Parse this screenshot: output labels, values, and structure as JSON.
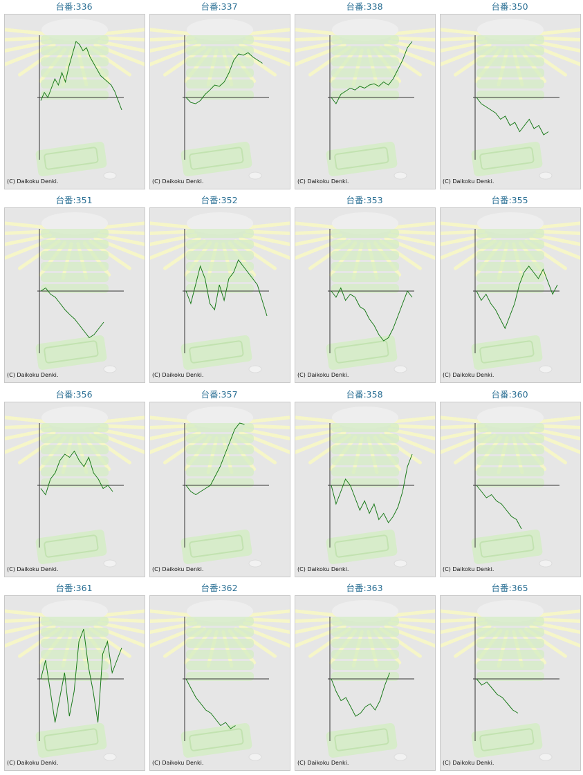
{
  "colors": {
    "title": "#2a6f94",
    "line": "#1a7a1a",
    "axis": "#333333",
    "panel_bg": "#e6e6e6",
    "border": "#c8c8c8",
    "watermark": "#d4ecc4",
    "rays": "#f6f6c8"
  },
  "copyright": "(C) Daikoku Denki.",
  "chart_data": [
    {
      "type": "line",
      "title": "台番:336",
      "values": [
        -5,
        8,
        0,
        15,
        30,
        20,
        40,
        25,
        50,
        70,
        90,
        85,
        75,
        80,
        65,
        55,
        45,
        35,
        30,
        25,
        20,
        10,
        -5,
        -20
      ]
    },
    {
      "type": "line",
      "title": "台番:337",
      "values": [
        0,
        -8,
        -10,
        -5,
        5,
        12,
        20,
        18,
        25,
        40,
        60,
        70,
        68,
        72,
        65,
        60,
        55
      ]
    },
    {
      "type": "line",
      "title": "台番:338",
      "values": [
        0,
        -10,
        5,
        10,
        15,
        12,
        18,
        15,
        20,
        22,
        18,
        25,
        20,
        30,
        45,
        60,
        80,
        90
      ]
    },
    {
      "type": "line",
      "title": "台番:350",
      "values": [
        0,
        -10,
        -15,
        -20,
        -25,
        -35,
        -30,
        -45,
        -40,
        -55,
        -45,
        -35,
        -50,
        -45,
        -60,
        -55
      ]
    },
    {
      "type": "line",
      "title": "台番:351",
      "values": [
        0,
        5,
        -5,
        -10,
        -20,
        -30,
        -38,
        -45,
        -55,
        -65,
        -75,
        -70,
        -60,
        -50
      ]
    },
    {
      "type": "line",
      "title": "台番:352",
      "values": [
        0,
        -20,
        10,
        40,
        20,
        -20,
        -30,
        10,
        -15,
        20,
        30,
        50,
        40,
        30,
        20,
        10,
        -15,
        -40
      ]
    },
    {
      "type": "line",
      "title": "台番:353",
      "values": [
        0,
        -10,
        5,
        -15,
        -5,
        -10,
        -25,
        -30,
        -45,
        -55,
        -70,
        -80,
        -75,
        -60,
        -40,
        -20,
        0,
        -10
      ]
    },
    {
      "type": "line",
      "title": "台番:355",
      "values": [
        0,
        -15,
        -5,
        -20,
        -30,
        -45,
        -60,
        -40,
        -20,
        10,
        30,
        40,
        30,
        20,
        35,
        15,
        -5,
        10
      ]
    },
    {
      "type": "line",
      "title": "台番:356",
      "values": [
        -5,
        -15,
        10,
        20,
        40,
        50,
        45,
        55,
        40,
        30,
        45,
        20,
        10,
        -5,
        0,
        -10
      ]
    },
    {
      "type": "line",
      "title": "台番:357",
      "values": [
        0,
        -10,
        -15,
        -10,
        -5,
        0,
        15,
        30,
        50,
        70,
        90,
        100,
        98
      ]
    },
    {
      "type": "line",
      "title": "台番:358",
      "values": [
        0,
        -30,
        -10,
        10,
        0,
        -20,
        -40,
        -25,
        -45,
        -30,
        -55,
        -45,
        -60,
        -50,
        -35,
        -10,
        30,
        50
      ]
    },
    {
      "type": "line",
      "title": "台番:360",
      "values": [
        0,
        -10,
        -20,
        -15,
        -25,
        -30,
        -40,
        -50,
        -55,
        -70
      ]
    },
    {
      "type": "line",
      "title": "台番:361",
      "values": [
        0,
        30,
        -20,
        -70,
        -30,
        10,
        -60,
        -20,
        60,
        80,
        20,
        -20,
        -70,
        40,
        60,
        10,
        30,
        50
      ]
    },
    {
      "type": "line",
      "title": "台番:362",
      "values": [
        0,
        -15,
        -30,
        -40,
        -50,
        -55,
        -65,
        -75,
        -70,
        -80,
        -75
      ]
    },
    {
      "type": "line",
      "title": "台番:363",
      "values": [
        0,
        -20,
        -35,
        -30,
        -45,
        -60,
        -55,
        -45,
        -40,
        -50,
        -35,
        -10,
        10
      ]
    },
    {
      "type": "line",
      "title": "台番:365",
      "values": [
        0,
        -10,
        -5,
        -15,
        -25,
        -30,
        -40,
        -50,
        -55
      ]
    }
  ]
}
